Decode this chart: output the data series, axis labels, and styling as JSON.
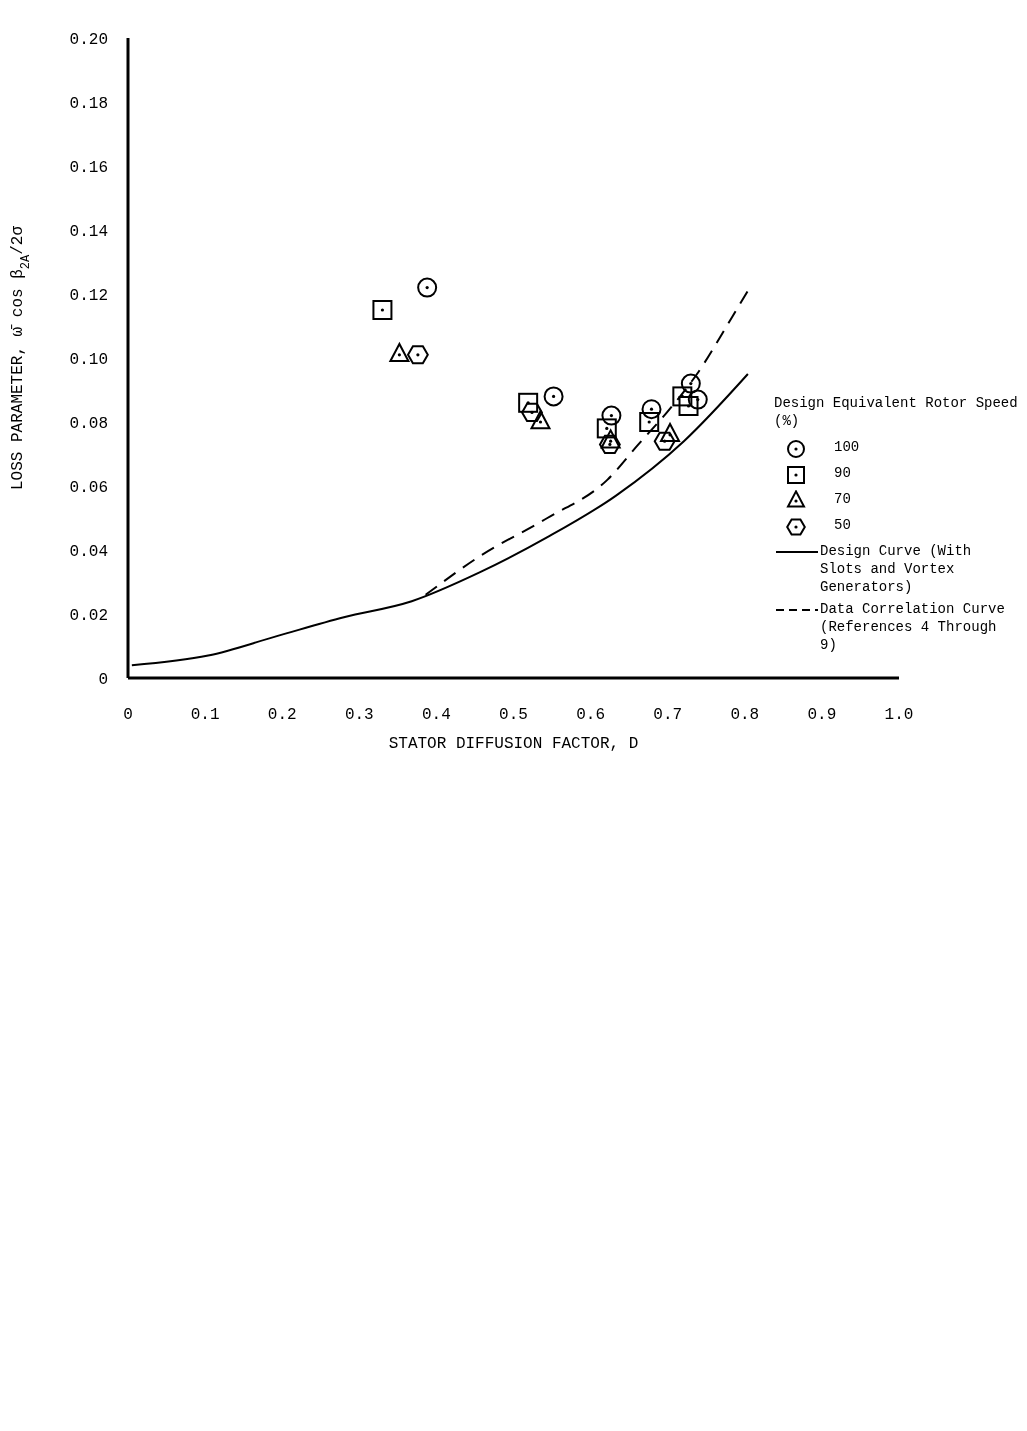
{
  "chart_data": {
    "type": "scatter",
    "xlabel": "STATOR DIFFUSION FACTOR, D",
    "ylabel": "LOSS PARAMETER, ω̄ cos β$_{2A}$/2σ",
    "legend_title": "Design Equivalent Rotor Speed (%)",
    "xlim": [
      0,
      1
    ],
    "xticks": [
      0,
      0.1,
      0.2,
      0.3,
      0.4,
      0.5,
      0.6,
      0.7,
      0.8,
      0.9,
      {
        "value": 1,
        "label": "1.0"
      }
    ],
    "ylim": [
      0,
      0.2
    ],
    "yticks": [
      0,
      0.02,
      0.04,
      0.06,
      0.08,
      {
        "value": 0.1,
        "label": "0.10"
      },
      0.12,
      0.14,
      0.16,
      0.18,
      {
        "value": 0.2,
        "label": "0.20"
      }
    ],
    "legend": "bottom right",
    "series": [
      {
        "name": "100",
        "marker": "circle",
        "color": "#000000",
        "x": [
          0.388,
          0.552,
          0.627,
          0.679,
          0.73,
          0.739
        ],
        "values": [
          0.122,
          0.088,
          0.082,
          0.084,
          0.092,
          0.087
        ]
      },
      {
        "name": "90",
        "marker": "square",
        "color": "#000000",
        "x": [
          0.33,
          0.519,
          0.621,
          0.676,
          0.719,
          0.727
        ],
        "values": [
          0.115,
          0.086,
          0.078,
          0.08,
          0.088,
          0.085
        ]
      },
      {
        "name": "70",
        "marker": "triangle",
        "color": "#000000",
        "x": [
          0.352,
          0.535,
          0.626,
          0.703
        ],
        "values": [
          0.101,
          0.08,
          0.074,
          0.076
        ]
      },
      {
        "name": "50",
        "color": "#000000",
        "x": [
          0.376,
          0.524,
          0.625,
          0.696
        ],
        "values": [
          0.101,
          0.083,
          0.073,
          0.074
        ]
      },
      {
        "name": "Design Curve (With Slots and Vortex Generators)",
        "type": "line",
        "line_style": "solid",
        "color": "#000000",
        "x": [
          0.005,
          0.104,
          0.192,
          0.28,
          0.368,
          0.456,
          0.544,
          0.633,
          0.721,
          0.804
        ],
        "values": [
          0.004,
          0.007,
          0.013,
          0.019,
          0.024,
          0.033,
          0.044,
          0.057,
          0.074,
          0.095
        ]
      },
      {
        "name": "Data Correlation Curve (References 4 Through 9)",
        "type": "line",
        "line_style": "dashed",
        "color": "#000000",
        "x": [
          0.386,
          0.456,
          0.544,
          0.622,
          0.662,
          0.699,
          0.738,
          0.784,
          0.804
        ],
        "values": [
          0.026,
          0.038,
          0.05,
          0.062,
          0.073,
          0.083,
          0.095,
          0.113,
          0.121
        ]
      }
    ]
  }
}
